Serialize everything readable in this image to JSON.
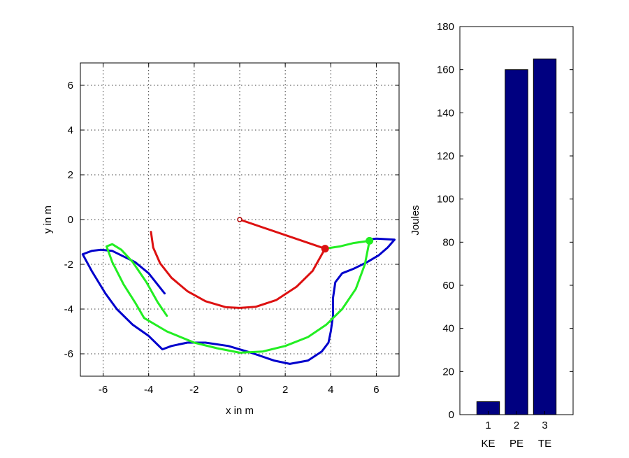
{
  "chart_data": [
    {
      "type": "scatter",
      "xlabel": "x in m",
      "ylabel": "y in m",
      "xlim": [
        -7,
        7
      ],
      "ylim": [
        -7,
        7
      ],
      "grid": true,
      "x_ticks": [
        -6,
        -4,
        -2,
        0,
        2,
        4,
        6
      ],
      "y_ticks": [
        -6,
        -4,
        -2,
        0,
        2,
        4,
        6
      ],
      "series": [
        {
          "color": "#0000cc",
          "points": [
            [
              -3.3,
              -3.3
            ],
            [
              -4.0,
              -2.4
            ],
            [
              -4.6,
              -1.9
            ],
            [
              -5.2,
              -1.6
            ],
            [
              -5.6,
              -1.4
            ],
            [
              -6.1,
              -1.35
            ],
            [
              -6.5,
              -1.4
            ],
            [
              -6.9,
              -1.55
            ],
            [
              -6.5,
              -2.3
            ],
            [
              -5.9,
              -3.3
            ],
            [
              -5.4,
              -4.0
            ],
            [
              -4.7,
              -4.7
            ],
            [
              -4.0,
              -5.2
            ],
            [
              -3.4,
              -5.8
            ],
            [
              -3.0,
              -5.65
            ],
            [
              -2.3,
              -5.5
            ],
            [
              -1.5,
              -5.5
            ],
            [
              -0.5,
              -5.65
            ],
            [
              0.5,
              -5.95
            ],
            [
              1.5,
              -6.3
            ],
            [
              2.2,
              -6.45
            ],
            [
              3.0,
              -6.3
            ],
            [
              3.6,
              -5.9
            ],
            [
              3.9,
              -5.5
            ],
            [
              4.0,
              -5.0
            ],
            [
              4.1,
              -4.3
            ],
            [
              4.1,
              -3.5
            ],
            [
              4.2,
              -2.8
            ],
            [
              4.5,
              -2.4
            ],
            [
              5.0,
              -2.2
            ],
            [
              5.6,
              -1.9
            ],
            [
              6.1,
              -1.6
            ],
            [
              6.5,
              -1.25
            ],
            [
              6.8,
              -0.9
            ],
            [
              6.0,
              -0.85
            ],
            [
              5.6,
              -0.9
            ]
          ]
        },
        {
          "color": "#22ee22",
          "points": [
            [
              -3.2,
              -4.3
            ],
            [
              -3.6,
              -3.7
            ],
            [
              -4.1,
              -2.8
            ],
            [
              -4.7,
              -1.9
            ],
            [
              -5.2,
              -1.35
            ],
            [
              -5.6,
              -1.1
            ],
            [
              -5.85,
              -1.2
            ],
            [
              -5.6,
              -1.9
            ],
            [
              -5.1,
              -2.9
            ],
            [
              -4.6,
              -3.7
            ],
            [
              -4.2,
              -4.4
            ],
            [
              -3.2,
              -5.0
            ],
            [
              -2.0,
              -5.5
            ],
            [
              -1.0,
              -5.75
            ],
            [
              0.0,
              -5.95
            ],
            [
              1.0,
              -5.9
            ],
            [
              2.0,
              -5.65
            ],
            [
              3.0,
              -5.25
            ],
            [
              3.8,
              -4.7
            ],
            [
              4.5,
              -4.0
            ],
            [
              5.1,
              -3.1
            ],
            [
              5.5,
              -2.0
            ],
            [
              5.7,
              -0.95
            ],
            [
              5.0,
              -1.05
            ],
            [
              4.4,
              -1.2
            ],
            [
              3.75,
              -1.3
            ]
          ]
        },
        {
          "color": "#dd1111",
          "points": [
            [
              -3.9,
              -0.55
            ],
            [
              -3.8,
              -1.25
            ],
            [
              -3.5,
              -1.95
            ],
            [
              -3.0,
              -2.6
            ],
            [
              -2.3,
              -3.2
            ],
            [
              -1.5,
              -3.65
            ],
            [
              -0.6,
              -3.92
            ],
            [
              0.0,
              -3.95
            ],
            [
              0.7,
              -3.9
            ],
            [
              1.6,
              -3.6
            ],
            [
              2.5,
              -3.0
            ],
            [
              3.2,
              -2.3
            ],
            [
              3.75,
              -1.3
            ]
          ]
        },
        {
          "color": "#dd1111",
          "points": [
            [
              0.0,
              0.0
            ],
            [
              3.75,
              -1.3
            ]
          ]
        }
      ],
      "markers": [
        {
          "x": 0.0,
          "y": 0.0,
          "color": "#aa0000"
        },
        {
          "x": 3.75,
          "y": -1.3,
          "color": "#dd1111"
        },
        {
          "x": 5.7,
          "y": -0.95,
          "color": "#22ee22"
        }
      ]
    },
    {
      "type": "bar",
      "categories": [
        "1",
        "2",
        "3"
      ],
      "category_labels": [
        "KE",
        "PE",
        "TE"
      ],
      "values": [
        6,
        160,
        165
      ],
      "ylabel": "Joules",
      "ylim": [
        0,
        180
      ],
      "y_ticks": [
        0,
        20,
        40,
        60,
        80,
        100,
        120,
        140,
        160,
        180
      ],
      "color": "#000080",
      "grid": false
    }
  ]
}
